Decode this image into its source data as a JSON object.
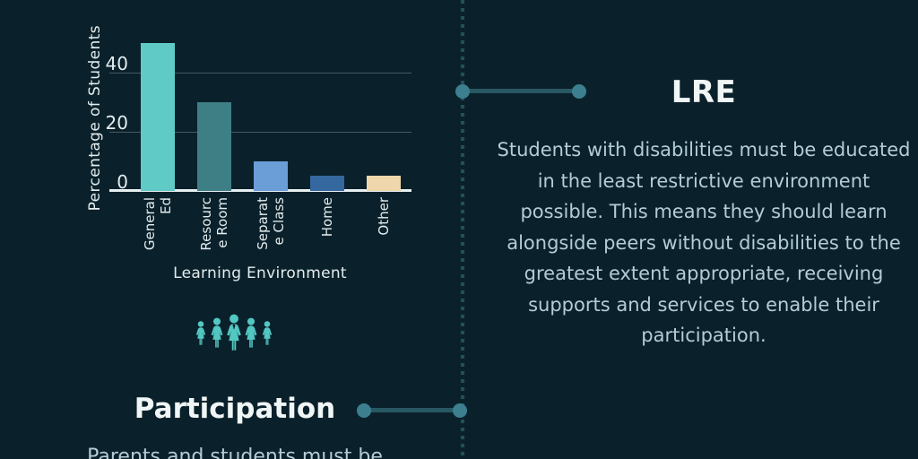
{
  "colors": {
    "bg": "#0a212b",
    "divider": "#20505b",
    "dot": "#3c8090",
    "line": "#275863",
    "heading": "#f0f5f5",
    "body_text": "#b4ccd5",
    "axis_text": "#e3ecee",
    "people_icon": "#53c7c2"
  },
  "chart_data": {
    "type": "bar",
    "title": "",
    "xlabel": "Learning Environment",
    "ylabel": "Percentage of Students",
    "categories": [
      "General Ed",
      "Resource Room",
      "Separate Class",
      "Home",
      "Other"
    ],
    "category_display_lines": [
      [
        "General",
        "Ed"
      ],
      [
        "Resourc",
        "e Room"
      ],
      [
        "Separat",
        "e Class"
      ],
      [
        "Home"
      ],
      [
        "Other"
      ]
    ],
    "values": [
      50,
      30,
      10,
      5,
      5
    ],
    "bar_colors": [
      "#60cbc6",
      "#3e7e85",
      "#6b9ed7",
      "#34689e",
      "#efd7ab"
    ],
    "yticks": [
      0,
      20,
      40
    ],
    "ylim": [
      0,
      55
    ],
    "grid": true,
    "legend": false
  },
  "sections": {
    "lre": {
      "heading": "LRE",
      "body": "Students with disabilities must be educated in the least restrictive environment possible. This means they should learn alongside peers without disabilities to the greatest extent appropriate, receiving supports and services to enable their participation."
    },
    "participation": {
      "heading": "Participation",
      "body_partial": "Parents and students must be"
    }
  },
  "icons": {
    "people_group": "people-group-icon",
    "timeline_node": "timeline-node-dot"
  }
}
